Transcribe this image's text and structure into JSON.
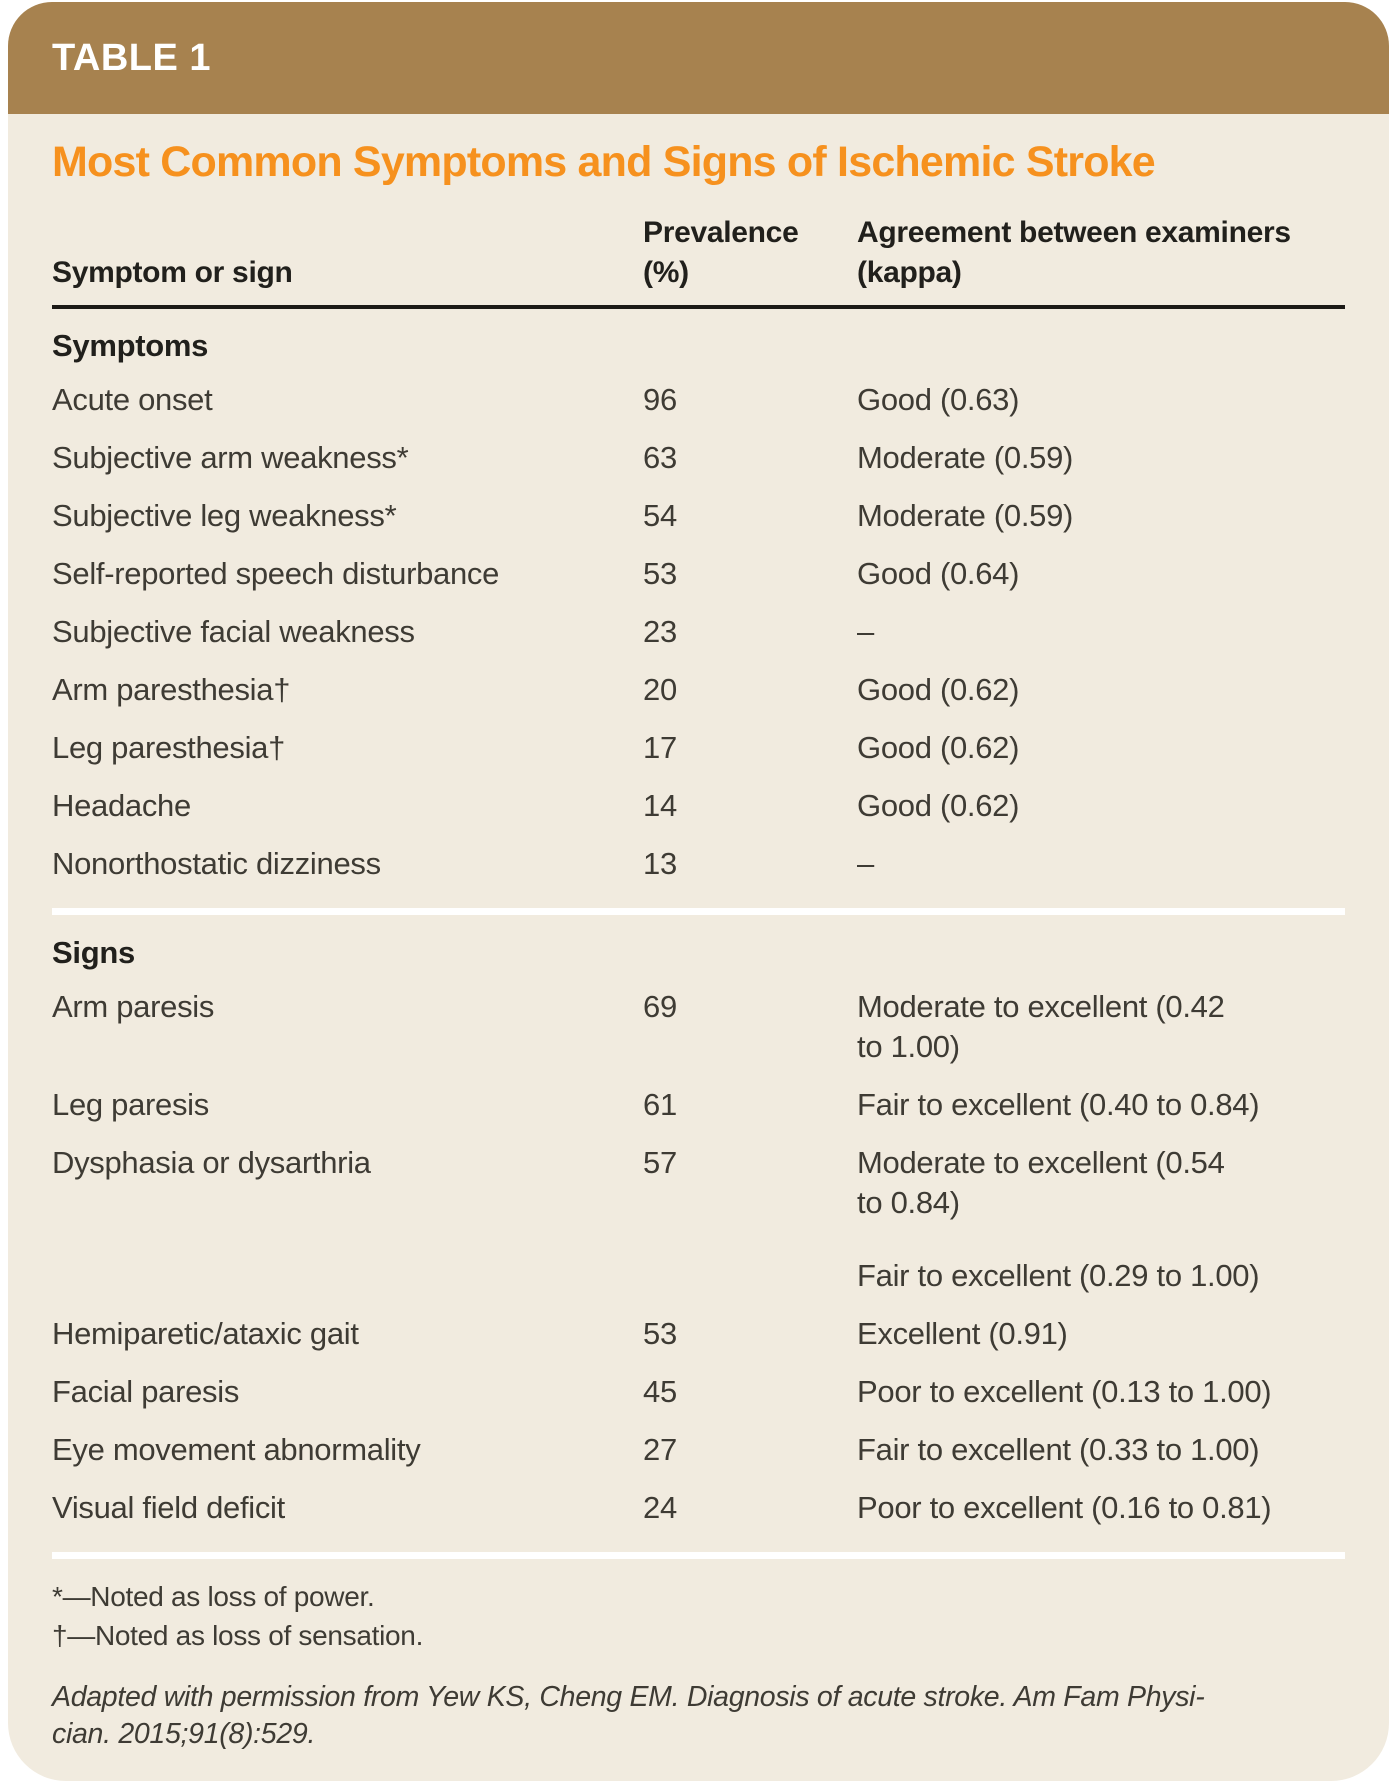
{
  "table_label": "TABLE 1",
  "title": "Most Common Symptoms and Signs of Ischemic Stroke",
  "columns": {
    "symptom": "Symptom or sign",
    "prevalence": "Prevalence\n(%)",
    "agreement": "Agreement between examiners\n(kappa)"
  },
  "sections": [
    {
      "heading": "Symptoms",
      "rows": [
        {
          "symptom": "Acute onset",
          "prevalence": "96",
          "agreement": "Good (0.63)"
        },
        {
          "symptom": "Subjective arm weakness*",
          "prevalence": "63",
          "agreement": "Moderate (0.59)"
        },
        {
          "symptom": "Subjective leg weakness*",
          "prevalence": "54",
          "agreement": "Moderate (0.59)"
        },
        {
          "symptom": "Self-reported speech disturbance",
          "prevalence": "53",
          "agreement": "Good (0.64)"
        },
        {
          "symptom": "Subjective facial weakness",
          "prevalence": "23",
          "agreement": "–"
        },
        {
          "symptom": "Arm paresthesia†",
          "prevalence": "20",
          "agreement": "Good (0.62)"
        },
        {
          "symptom": "Leg paresthesia†",
          "prevalence": "17",
          "agreement": "Good (0.62)"
        },
        {
          "symptom": "Headache",
          "prevalence": "14",
          "agreement": "Good (0.62)"
        },
        {
          "symptom": "Nonorthostatic dizziness",
          "prevalence": "13",
          "agreement": "–"
        }
      ]
    },
    {
      "heading": "Signs",
      "rows": [
        {
          "symptom": "Arm paresis",
          "prevalence": "69",
          "agreement": "Moderate to excellent (0.42\nto 1.00)"
        },
        {
          "symptom": "Leg paresis",
          "prevalence": "61",
          "agreement": "Fair to excellent (0.40 to 0.84)"
        },
        {
          "symptom": "Dysphasia or dysarthria",
          "prevalence": "57",
          "agreement": "Moderate to excellent (0.54\nto 0.84)"
        },
        {
          "symptom": "",
          "prevalence": "",
          "agreement": "Fair to excellent (0.29 to 1.00)",
          "continuation": true
        },
        {
          "symptom": "Hemiparetic/ataxic gait",
          "prevalence": "53",
          "agreement": "Excellent (0.91)"
        },
        {
          "symptom": "Facial paresis",
          "prevalence": "45",
          "agreement": "Poor to excellent (0.13 to 1.00)"
        },
        {
          "symptom": "Eye movement abnormality",
          "prevalence": "27",
          "agreement": "Fair to excellent (0.33 to 1.00)"
        },
        {
          "symptom": "Visual field deficit",
          "prevalence": "24",
          "agreement": "Poor to excellent (0.16 to 0.81)"
        }
      ]
    }
  ],
  "footnotes": [
    "*—Noted as loss of power.",
    "†—Noted as loss of sensation."
  ],
  "credit": "Adapted with permission from Yew KS, Cheng EM. Diagnosis of acute stroke. Am Fam Physi-\ncian. 2015;91(8):529.",
  "colors": {
    "page_background": "#ffffff",
    "header_bar": "#a7824f",
    "card_background": "#f1ebdf",
    "title": "#f6911e",
    "rule": "#1c1a16",
    "text": "#3e3b34",
    "heading_text": "#21201c",
    "divider": "#ffffff"
  }
}
